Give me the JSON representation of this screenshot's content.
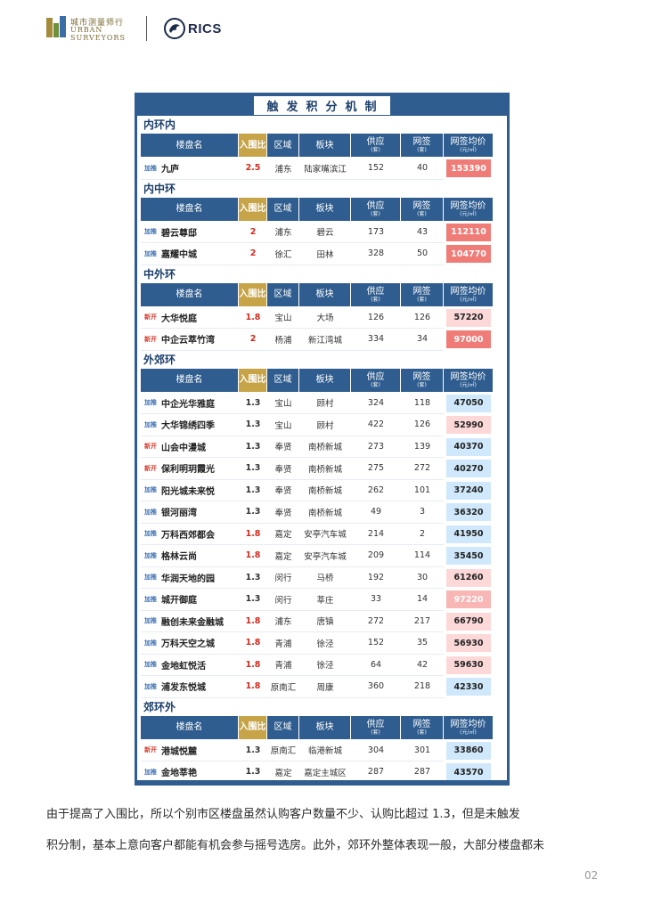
{
  "header": {
    "logo_cn": "城市测量师行",
    "logo_en_1": "URBAN",
    "logo_en_2": "SURVEYORS",
    "partner": "RICS"
  },
  "table": {
    "title": "触发积分机制",
    "columns": [
      {
        "label": "楼盘名",
        "unit": ""
      },
      {
        "label": "入围比",
        "unit": ""
      },
      {
        "label": "区域",
        "unit": ""
      },
      {
        "label": "板块",
        "unit": ""
      },
      {
        "label": "供应",
        "unit": "(套)"
      },
      {
        "label": "网签",
        "unit": "(套)"
      },
      {
        "label": "网签均价",
        "unit": "(元/㎡)"
      }
    ],
    "sections": [
      {
        "title": "内环内",
        "rows": [
          {
            "tag": "加推",
            "name": "九庐",
            "ratio": "2.5",
            "district": "浦东",
            "block": "陆家嘴滨江",
            "supply": "152",
            "signed": "40",
            "price": "153390",
            "ratio_color": "red",
            "price_color": "c-dark"
          }
        ]
      },
      {
        "title": "内中环",
        "rows": [
          {
            "tag": "加推",
            "name": "碧云尊邸",
            "ratio": "2",
            "district": "浦东",
            "block": "碧云",
            "supply": "173",
            "signed": "43",
            "price": "112110",
            "ratio_color": "red",
            "price_color": "c-dark"
          },
          {
            "tag": "加推",
            "name": "嘉耀中城",
            "ratio": "2",
            "district": "徐汇",
            "block": "田林",
            "supply": "328",
            "signed": "50",
            "price": "104770",
            "ratio_color": "red",
            "price_color": "c-dark"
          }
        ]
      },
      {
        "title": "中外环",
        "rows": [
          {
            "tag": "新开",
            "name": "大华悦庭",
            "ratio": "1.8",
            "district": "宝山",
            "block": "大场",
            "supply": "126",
            "signed": "126",
            "price": "57220",
            "ratio_color": "red",
            "price_color": "c-light"
          },
          {
            "tag": "新开",
            "name": "中企云萃竹湾",
            "ratio": "2",
            "district": "杨浦",
            "block": "新江湾城",
            "supply": "334",
            "signed": "34",
            "price": "97000",
            "ratio_color": "red",
            "price_color": "c-dark"
          }
        ]
      },
      {
        "title": "外郊环",
        "rows": [
          {
            "tag": "加推",
            "name": "中企光华雅庭",
            "ratio": "1.3",
            "district": "宝山",
            "block": "顾村",
            "supply": "324",
            "signed": "118",
            "price": "47050",
            "ratio_color": "plain",
            "price_color": "c-blue"
          },
          {
            "tag": "加推",
            "name": "大华锦绣四季",
            "ratio": "1.3",
            "district": "宝山",
            "block": "顾村",
            "supply": "422",
            "signed": "126",
            "price": "52990",
            "ratio_color": "plain",
            "price_color": "c-light"
          },
          {
            "tag": "新开",
            "name": "山会中漫城",
            "ratio": "1.3",
            "district": "奉贤",
            "block": "南桥新城",
            "supply": "273",
            "signed": "139",
            "price": "40370",
            "ratio_color": "plain",
            "price_color": "c-blue"
          },
          {
            "tag": "新开",
            "name": "保利明玥霞光",
            "ratio": "1.3",
            "district": "奉贤",
            "block": "南桥新城",
            "supply": "275",
            "signed": "272",
            "price": "40270",
            "ratio_color": "plain",
            "price_color": "c-blue"
          },
          {
            "tag": "加推",
            "name": "阳光城未来悦",
            "ratio": "1.3",
            "district": "奉贤",
            "block": "南桥新城",
            "supply": "262",
            "signed": "101",
            "price": "37240",
            "ratio_color": "plain",
            "price_color": "c-blue"
          },
          {
            "tag": "加推",
            "name": "银河丽湾",
            "ratio": "1.3",
            "district": "奉贤",
            "block": "南桥新城",
            "supply": "49",
            "signed": "3",
            "price": "36320",
            "ratio_color": "plain",
            "price_color": "c-blue"
          },
          {
            "tag": "加推",
            "name": "万科西郊都会",
            "ratio": "1.8",
            "district": "嘉定",
            "block": "安亭汽车城",
            "supply": "214",
            "signed": "2",
            "price": "41950",
            "ratio_color": "red",
            "price_color": "c-blue"
          },
          {
            "tag": "加推",
            "name": "格林云尚",
            "ratio": "1.8",
            "district": "嘉定",
            "block": "安亭汽车城",
            "supply": "209",
            "signed": "114",
            "price": "35450",
            "ratio_color": "red",
            "price_color": "c-blue"
          },
          {
            "tag": "加推",
            "name": "华润天地的园",
            "ratio": "1.3",
            "district": "闵行",
            "block": "马桥",
            "supply": "192",
            "signed": "30",
            "price": "61260",
            "ratio_color": "plain",
            "price_color": "c-light"
          },
          {
            "tag": "加推",
            "name": "城开御庭",
            "ratio": "1.3",
            "district": "闵行",
            "block": "莘庄",
            "supply": "33",
            "signed": "14",
            "price": "97220",
            "ratio_color": "plain",
            "price_color": "c-mid"
          },
          {
            "tag": "加推",
            "name": "融创未来金融城",
            "ratio": "1.8",
            "district": "浦东",
            "block": "唐镇",
            "supply": "272",
            "signed": "217",
            "price": "66790",
            "ratio_color": "red",
            "price_color": "c-light"
          },
          {
            "tag": "加推",
            "name": "万科天空之城",
            "ratio": "1.8",
            "district": "青浦",
            "block": "徐泾",
            "supply": "152",
            "signed": "35",
            "price": "56930",
            "ratio_color": "red",
            "price_color": "c-light"
          },
          {
            "tag": "加推",
            "name": "金地虹悦活",
            "ratio": "1.8",
            "district": "青浦",
            "block": "徐泾",
            "supply": "64",
            "signed": "42",
            "price": "59630",
            "ratio_color": "red",
            "price_color": "c-light"
          },
          {
            "tag": "加推",
            "name": "浦发东悦城",
            "ratio": "1.8",
            "district": "原南汇",
            "block": "周康",
            "supply": "360",
            "signed": "218",
            "price": "42330",
            "ratio_color": "red",
            "price_color": "c-blue"
          }
        ]
      },
      {
        "title": "郊环外",
        "rows": [
          {
            "tag": "新开",
            "name": "港城悦麓",
            "ratio": "1.3",
            "district": "原南汇",
            "block": "临港新城",
            "supply": "304",
            "signed": "301",
            "price": "33860",
            "ratio_color": "plain",
            "price_color": "c-blue"
          },
          {
            "tag": "加推",
            "name": "金地莘艳",
            "ratio": "1.3",
            "district": "嘉定",
            "block": "嘉定主城区",
            "supply": "287",
            "signed": "287",
            "price": "43570",
            "ratio_color": "plain",
            "price_color": "c-blue"
          }
        ]
      }
    ]
  },
  "paragraph": {
    "line1": "由于提高了入围比，所以个别市区楼盘虽然认购客户数量不少、认购比超过 1.3，但是未触发",
    "line2": "积分制，基本上意向客户都能有机会参与摇号选房。此外，郊环外整体表现一般，大部分楼盘都未"
  },
  "page_number": "02",
  "colors": {
    "header_blue": "#2f5d8f",
    "gold": "#c7a447",
    "red": "#d22a1e",
    "price_dark": "#f07c78",
    "price_light": "#fcd9d8",
    "price_blue": "#cfe8fb"
  }
}
